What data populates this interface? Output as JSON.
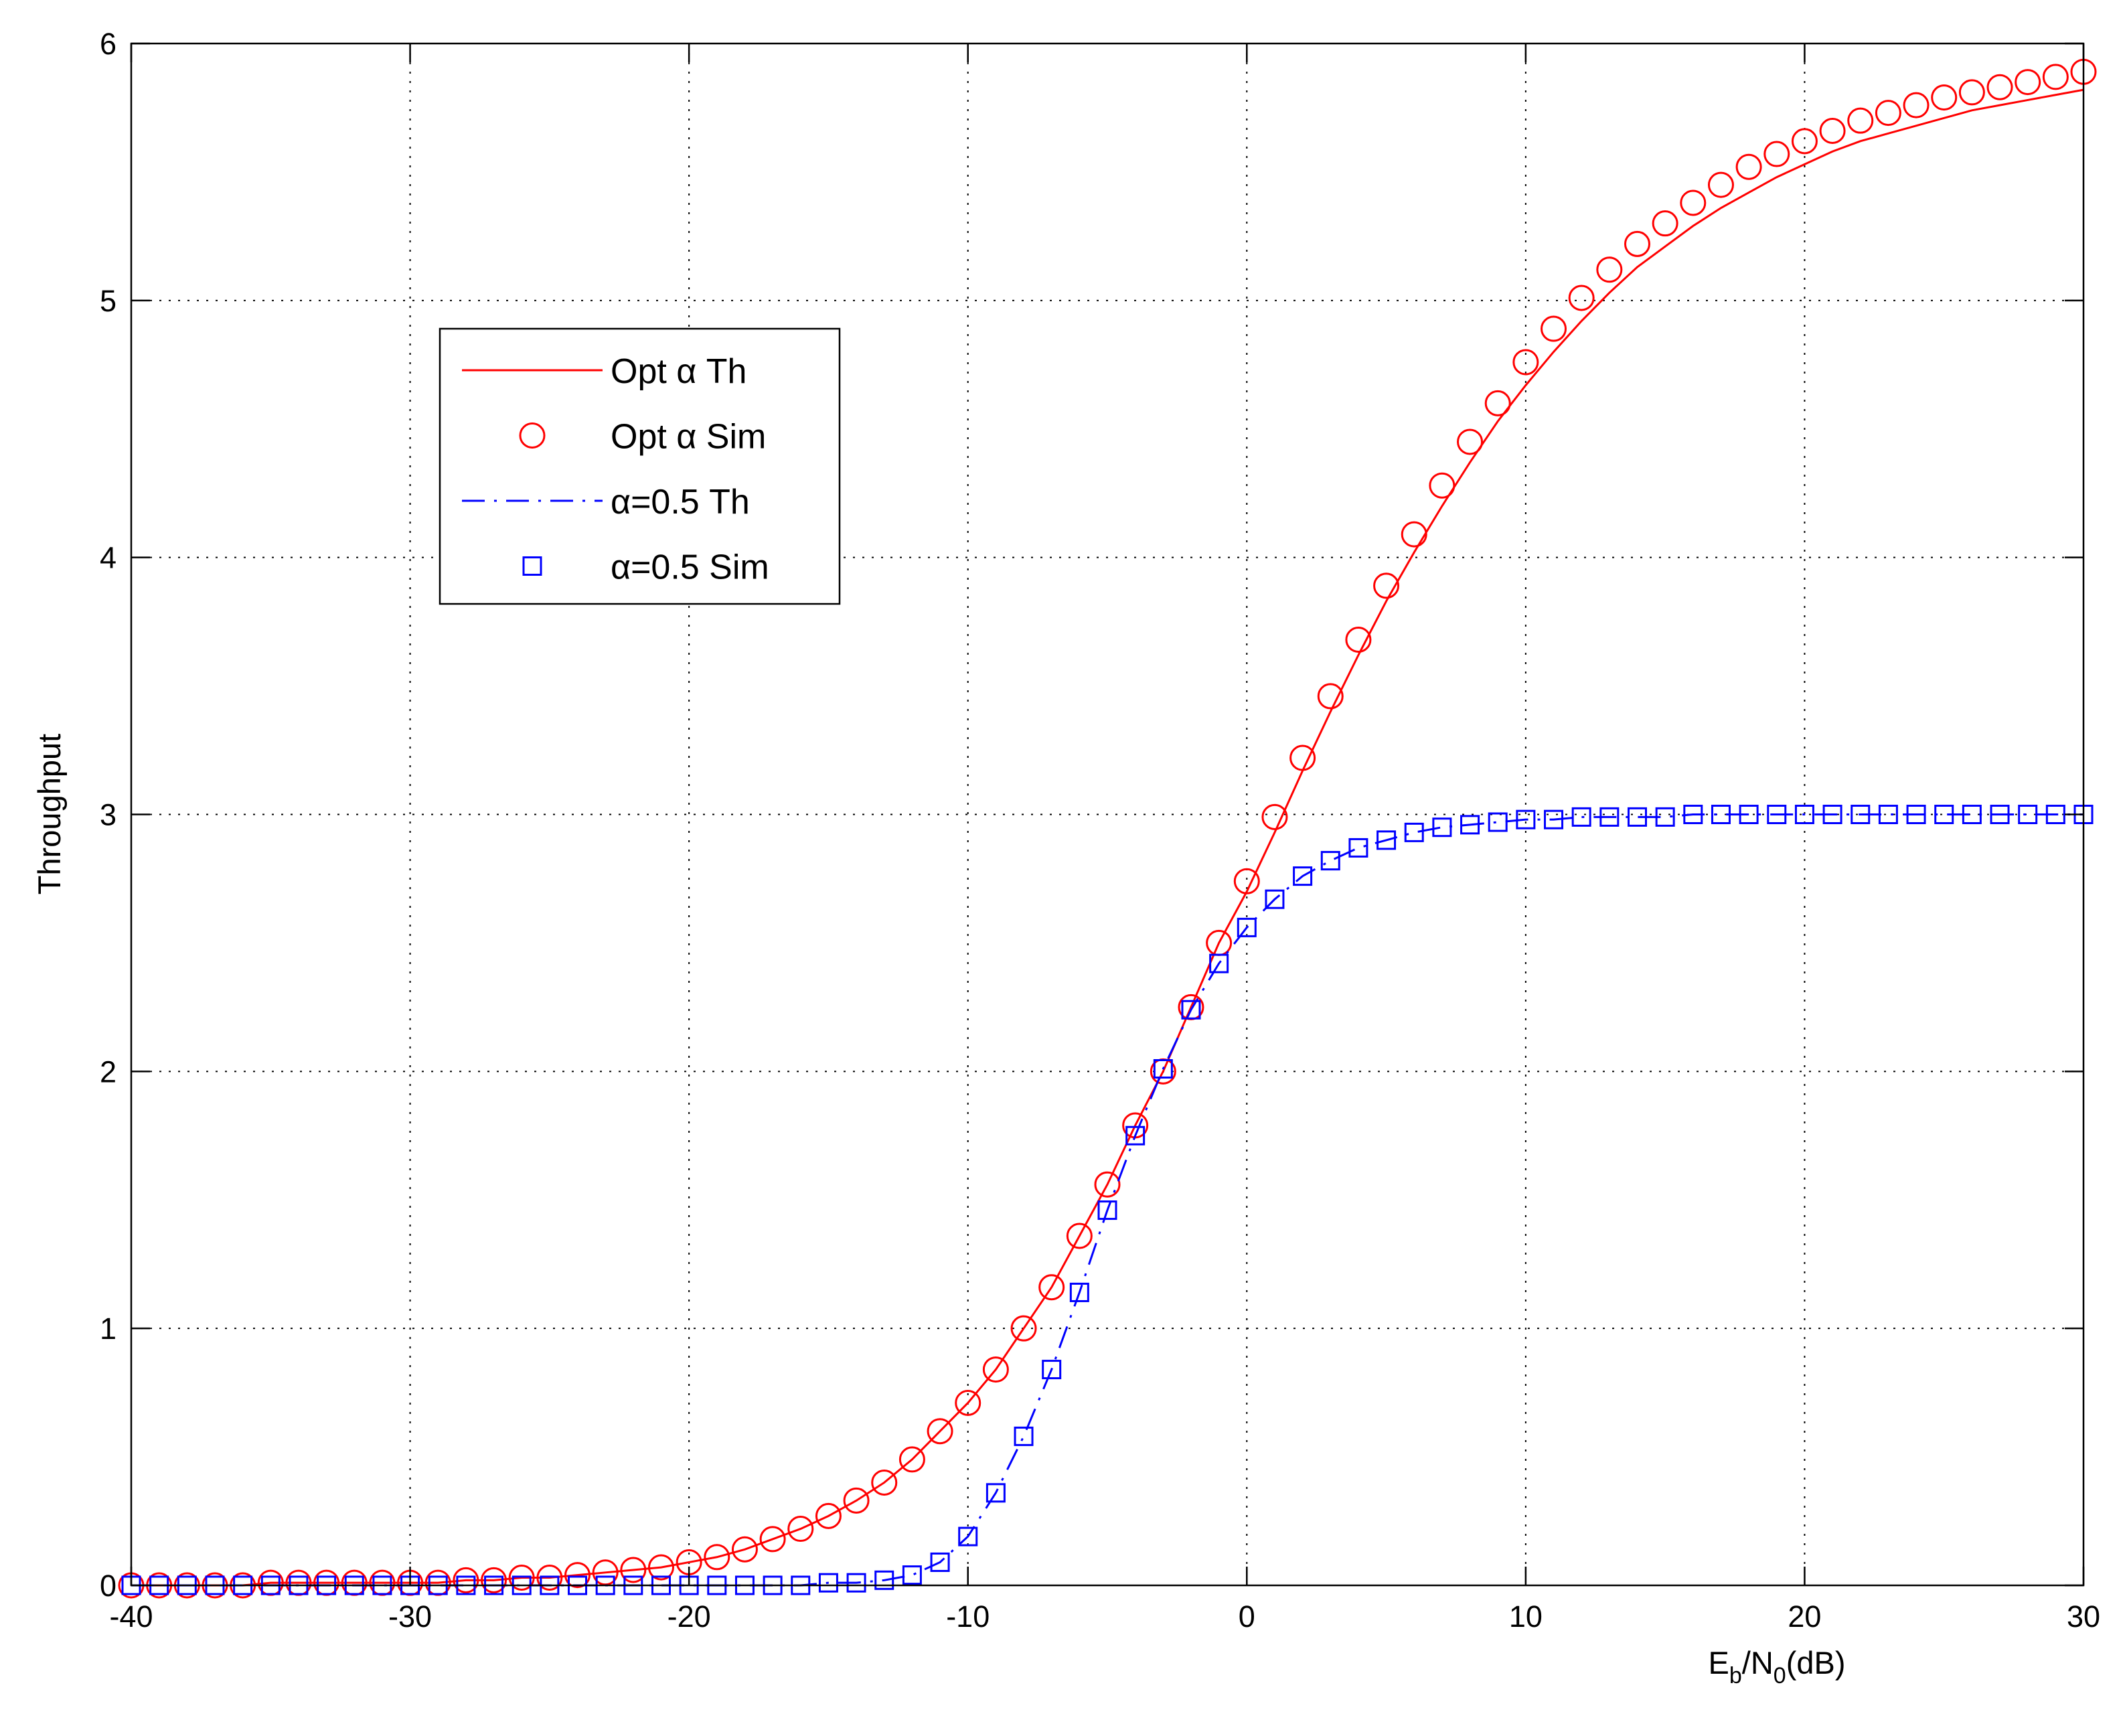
{
  "chart_data": {
    "type": "line",
    "xlabel": [
      "E",
      "b",
      "/N",
      "0",
      "(dB)"
    ],
    "ylabel": "Throughput",
    "x": [
      -40,
      -39,
      -38,
      -37,
      -36,
      -35,
      -34,
      -33,
      -32,
      -31,
      -30,
      -29,
      -28,
      -27,
      -26,
      -25,
      -24,
      -23,
      -22,
      -21,
      -20,
      -19,
      -18,
      -17,
      -16,
      -15,
      -14,
      -13,
      -12,
      -11,
      -10,
      -9,
      -8,
      -7,
      -6,
      -5,
      -4,
      -3,
      -2,
      -1,
      0,
      1,
      2,
      3,
      4,
      5,
      6,
      7,
      8,
      9,
      10,
      11,
      12,
      13,
      14,
      15,
      16,
      17,
      18,
      19,
      20,
      21,
      22,
      23,
      24,
      25,
      26,
      27,
      28,
      29,
      30
    ],
    "series": [
      {
        "name": "Opt α Th",
        "color": "#ff0000",
        "line": "solid",
        "marker": "none",
        "values": [
          0,
          0,
          0,
          0,
          0,
          0.01,
          0.01,
          0.01,
          0.01,
          0.01,
          0.01,
          0.01,
          0.02,
          0.02,
          0.03,
          0.03,
          0.04,
          0.05,
          0.06,
          0.07,
          0.09,
          0.11,
          0.14,
          0.18,
          0.22,
          0.27,
          0.33,
          0.4,
          0.49,
          0.6,
          0.71,
          0.84,
          1.0,
          1.16,
          1.36,
          1.56,
          1.79,
          2.0,
          2.25,
          2.5,
          2.7,
          2.93,
          3.17,
          3.4,
          3.62,
          3.83,
          4.02,
          4.2,
          4.37,
          4.53,
          4.67,
          4.8,
          4.92,
          5.03,
          5.13,
          5.21,
          5.29,
          5.36,
          5.42,
          5.48,
          5.53,
          5.58,
          5.62,
          5.65,
          5.68,
          5.71,
          5.74,
          5.76,
          5.78,
          5.8,
          5.82
        ]
      },
      {
        "name": "Opt α Sim",
        "color": "#ff0000",
        "line": "none",
        "marker": "circle",
        "values": [
          0,
          0,
          0,
          0,
          0,
          0.01,
          0.01,
          0.01,
          0.01,
          0.01,
          0.01,
          0.01,
          0.02,
          0.02,
          0.03,
          0.03,
          0.04,
          0.05,
          0.06,
          0.07,
          0.09,
          0.11,
          0.14,
          0.18,
          0.22,
          0.27,
          0.33,
          0.4,
          0.49,
          0.6,
          0.71,
          0.84,
          1.0,
          1.16,
          1.36,
          1.56,
          1.79,
          2.0,
          2.25,
          2.5,
          2.74,
          2.99,
          3.22,
          3.46,
          3.68,
          3.89,
          4.09,
          4.28,
          4.45,
          4.6,
          4.76,
          4.89,
          5.01,
          5.12,
          5.22,
          5.3,
          5.38,
          5.45,
          5.52,
          5.57,
          5.62,
          5.66,
          5.7,
          5.73,
          5.76,
          5.79,
          5.81,
          5.83,
          5.85,
          5.87,
          5.89
        ]
      },
      {
        "name": "α=0.5 Th",
        "color": "#0000ff",
        "line": "dashdot",
        "marker": "none",
        "values": [
          0,
          0,
          0,
          0,
          0,
          0,
          0,
          0,
          0,
          0,
          0,
          0,
          0,
          0,
          0,
          0,
          0,
          0,
          0,
          0,
          0,
          0,
          0,
          0,
          0,
          0.01,
          0.01,
          0.02,
          0.04,
          0.09,
          0.19,
          0.36,
          0.58,
          0.84,
          1.14,
          1.46,
          1.75,
          2.01,
          2.24,
          2.42,
          2.56,
          2.67,
          2.76,
          2.82,
          2.87,
          2.9,
          2.93,
          2.95,
          2.96,
          2.97,
          2.98,
          2.98,
          2.99,
          2.99,
          2.99,
          2.99,
          3,
          3,
          3,
          3,
          3,
          3,
          3,
          3,
          3,
          3,
          3,
          3,
          3,
          3,
          3
        ]
      },
      {
        "name": "α=0.5 Sim",
        "color": "#0000ff",
        "line": "none",
        "marker": "square",
        "values": [
          0,
          0,
          0,
          0,
          0,
          0,
          0,
          0,
          0,
          0,
          0,
          0,
          0,
          0,
          0,
          0,
          0,
          0,
          0,
          0,
          0,
          0,
          0,
          0,
          0,
          0.01,
          0.01,
          0.02,
          0.04,
          0.09,
          0.19,
          0.36,
          0.58,
          0.84,
          1.14,
          1.46,
          1.75,
          2.01,
          2.24,
          2.42,
          2.56,
          2.67,
          2.76,
          2.82,
          2.87,
          2.9,
          2.93,
          2.95,
          2.96,
          2.97,
          2.98,
          2.98,
          2.99,
          2.99,
          2.99,
          2.99,
          3,
          3,
          3,
          3,
          3,
          3,
          3,
          3,
          3,
          3,
          3,
          3,
          3,
          3,
          3
        ]
      }
    ],
    "xlim": [
      -40,
      30
    ],
    "xticks": [
      -40,
      -30,
      -20,
      -10,
      0,
      10,
      20,
      30
    ],
    "ylim": [
      0,
      6
    ],
    "yticks": [
      0,
      1,
      2,
      3,
      4,
      5,
      6
    ],
    "grid": true
  }
}
